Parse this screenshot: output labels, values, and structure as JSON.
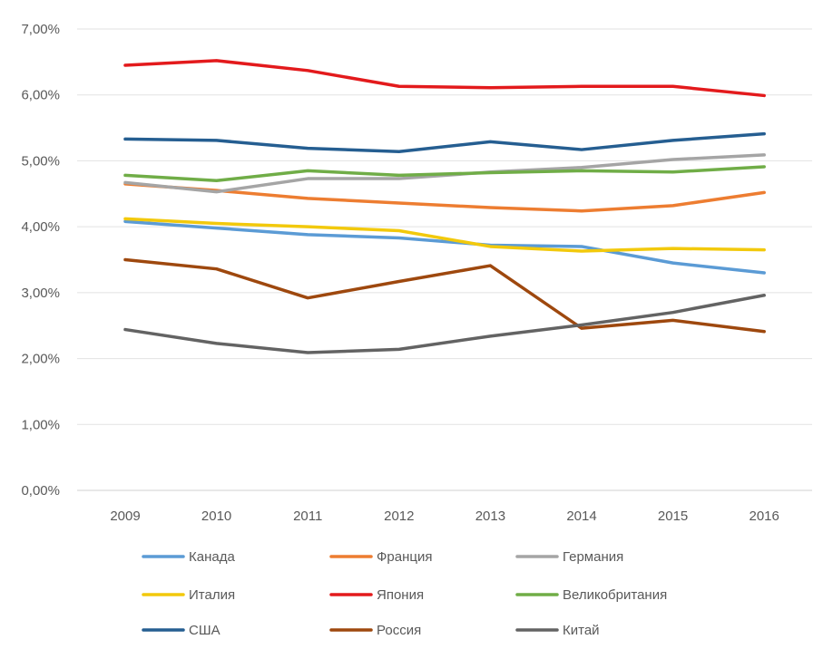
{
  "chart_data": {
    "type": "line",
    "title": "",
    "xlabel": "",
    "ylabel": "",
    "categories": [
      "2009",
      "2010",
      "2011",
      "2012",
      "2013",
      "2014",
      "2015",
      "2016"
    ],
    "ylim": [
      0,
      7
    ],
    "y_ticks": [
      "0,00%",
      "1,00%",
      "2,00%",
      "3,00%",
      "4,00%",
      "5,00%",
      "6,00%",
      "7,00%"
    ],
    "grid": true,
    "legend_position": "bottom",
    "series": [
      {
        "name": "Канада",
        "color": "#5b9bd5",
        "values": [
          4.08,
          3.98,
          3.88,
          3.83,
          3.72,
          3.7,
          3.45,
          3.3
        ]
      },
      {
        "name": "Франция",
        "color": "#ed7d31",
        "values": [
          4.65,
          4.55,
          4.43,
          4.36,
          4.29,
          4.24,
          4.32,
          4.52
        ]
      },
      {
        "name": "Германия",
        "color": "#a5a5a5",
        "values": [
          4.67,
          4.53,
          4.73,
          4.73,
          4.83,
          4.9,
          5.02,
          5.09
        ]
      },
      {
        "name": "Италия",
        "color": "#f2c90c",
        "values": [
          4.12,
          4.05,
          4.0,
          3.94,
          3.7,
          3.63,
          3.67,
          3.65
        ]
      },
      {
        "name": "Япония",
        "color": "#e31a1c",
        "values": [
          6.45,
          6.52,
          6.37,
          6.13,
          6.11,
          6.13,
          6.13,
          5.99
        ]
      },
      {
        "name": "Великобритания",
        "color": "#70ad47",
        "values": [
          4.78,
          4.7,
          4.85,
          4.78,
          4.82,
          4.85,
          4.83,
          4.91
        ]
      },
      {
        "name": "США",
        "color": "#255e91",
        "values": [
          5.33,
          5.31,
          5.19,
          5.14,
          5.29,
          5.17,
          5.31,
          5.41
        ]
      },
      {
        "name": "Россия",
        "color": "#9e480e",
        "values": [
          3.5,
          3.36,
          2.92,
          3.17,
          3.41,
          2.46,
          2.58,
          2.41
        ]
      },
      {
        "name": "Китай",
        "color": "#636363",
        "values": [
          2.44,
          2.23,
          2.09,
          2.14,
          2.34,
          2.51,
          2.7,
          2.96
        ]
      }
    ]
  }
}
